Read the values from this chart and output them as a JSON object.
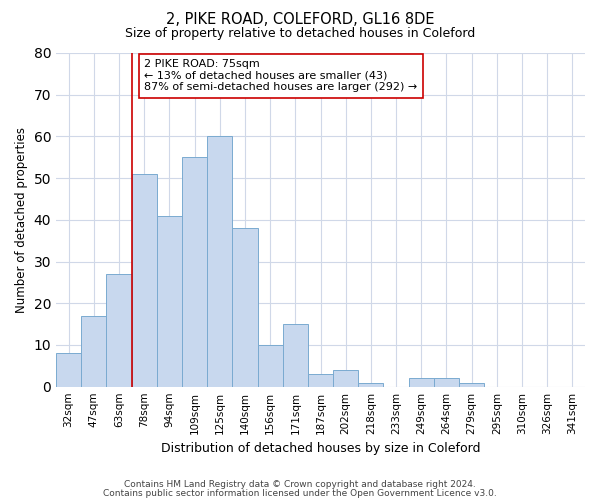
{
  "title1": "2, PIKE ROAD, COLEFORD, GL16 8DE",
  "title2": "Size of property relative to detached houses in Coleford",
  "xlabel": "Distribution of detached houses by size in Coleford",
  "ylabel": "Number of detached properties",
  "categories": [
    "32sqm",
    "47sqm",
    "63sqm",
    "78sqm",
    "94sqm",
    "109sqm",
    "125sqm",
    "140sqm",
    "156sqm",
    "171sqm",
    "187sqm",
    "202sqm",
    "218sqm",
    "233sqm",
    "249sqm",
    "264sqm",
    "279sqm",
    "295sqm",
    "310sqm",
    "326sqm",
    "341sqm"
  ],
  "values": [
    8,
    17,
    27,
    51,
    41,
    55,
    60,
    38,
    10,
    15,
    3,
    4,
    1,
    0,
    2,
    2,
    1,
    0,
    0,
    0,
    0
  ],
  "bar_color": "#c8d8ee",
  "bar_edge_color": "#7aaad0",
  "vline_color": "#cc0000",
  "annotation_text": "2 PIKE ROAD: 75sqm\n← 13% of detached houses are smaller (43)\n87% of semi-detached houses are larger (292) →",
  "annotation_box_color": "#ffffff",
  "annotation_box_edge": "#cc0000",
  "ylim": [
    0,
    80
  ],
  "yticks": [
    0,
    10,
    20,
    30,
    40,
    50,
    60,
    70,
    80
  ],
  "footer1": "Contains HM Land Registry data © Crown copyright and database right 2024.",
  "footer2": "Contains public sector information licensed under the Open Government Licence v3.0.",
  "background_color": "#ffffff",
  "grid_color": "#d0d8e8"
}
